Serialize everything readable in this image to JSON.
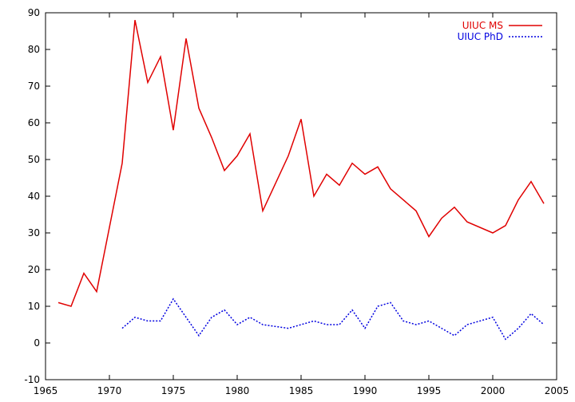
{
  "chart_data": {
    "type": "line",
    "title": "",
    "xlabel": "",
    "ylabel": "",
    "xlim": [
      1965,
      2005
    ],
    "ylim": [
      -10,
      90
    ],
    "xticks": [
      1965,
      1970,
      1975,
      1980,
      1985,
      1990,
      1995,
      2000,
      2005
    ],
    "yticks": [
      -10,
      0,
      10,
      20,
      30,
      40,
      50,
      60,
      70,
      80,
      90
    ],
    "grid": false,
    "legend_position": "top-right",
    "series": [
      {
        "name": "UIUC MS",
        "color": "#e00000",
        "line_style": "solid",
        "x": [
          1966,
          1967,
          1968,
          1969,
          1971,
          1972,
          1973,
          1974,
          1975,
          1976,
          1977,
          1978,
          1979,
          1980,
          1981,
          1982,
          1984,
          1985,
          1986,
          1987,
          1988,
          1989,
          1990,
          1991,
          1992,
          1993,
          1994,
          1995,
          1996,
          1997,
          1998,
          2000,
          2001,
          2002,
          2003,
          2004
        ],
        "y": [
          11,
          10,
          19,
          14,
          49,
          88,
          71,
          78,
          58,
          83,
          64,
          56,
          47,
          51,
          57,
          36,
          51,
          61,
          40,
          46,
          43,
          49,
          46,
          48,
          42,
          39,
          36,
          29,
          34,
          37,
          33,
          30,
          32,
          39,
          44,
          38
        ]
      },
      {
        "name": "UIUC PhD",
        "color": "#0000e0",
        "line_style": "dotted",
        "x": [
          1971,
          1972,
          1973,
          1974,
          1975,
          1976,
          1977,
          1978,
          1979,
          1980,
          1981,
          1982,
          1984,
          1985,
          1986,
          1987,
          1988,
          1989,
          1990,
          1991,
          1992,
          1993,
          1994,
          1995,
          1996,
          1997,
          1998,
          2000,
          2001,
          2002,
          2003,
          2004
        ],
        "y": [
          4,
          7,
          6,
          6,
          12,
          7,
          2,
          7,
          9,
          5,
          7,
          5,
          4,
          5,
          6,
          5,
          5,
          9,
          4,
          10,
          11,
          6,
          5,
          6,
          4,
          2,
          5,
          7,
          1,
          4,
          8,
          5
        ]
      }
    ]
  }
}
